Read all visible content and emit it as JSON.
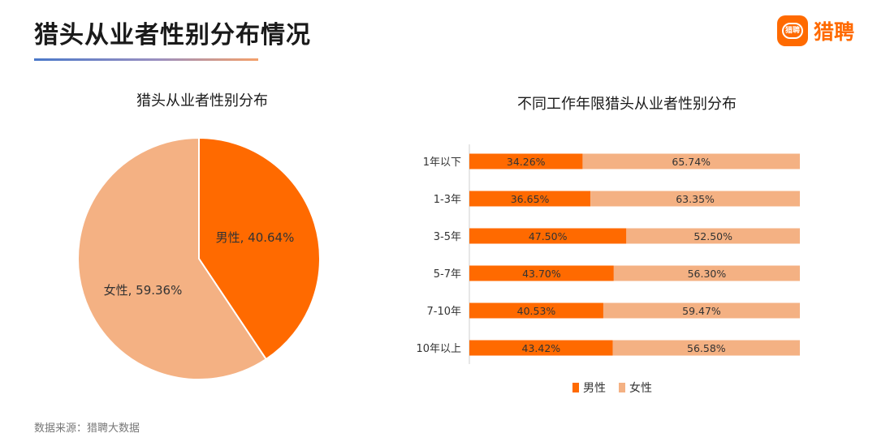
{
  "header": {
    "title": "猎头从业者性别分布情况"
  },
  "logo": {
    "badge_text": "猎聘",
    "name": "猎聘",
    "accent": "#ff6a00"
  },
  "colors": {
    "male": "#ff6a00",
    "female": "#f4b183"
  },
  "chart_data": [
    {
      "type": "pie",
      "title": "猎头从业者性别分布",
      "slices": [
        {
          "name": "男性",
          "value": 40.64,
          "label": "男性, 40.64%"
        },
        {
          "name": "女性",
          "value": 59.36,
          "label": "女性, 59.36%"
        }
      ]
    },
    {
      "type": "bar",
      "orientation": "horizontal",
      "stacked": true,
      "title": "不同工作年限猎头从业者性别分布",
      "categories": [
        "1年以下",
        "1-3年",
        "3-5年",
        "5-7年",
        "7-10年",
        "10年以上"
      ],
      "series": [
        {
          "name": "男性",
          "values": [
            34.26,
            36.65,
            47.5,
            43.7,
            40.53,
            43.42
          ],
          "labels": [
            "34.26%",
            "36.65%",
            "47.50%",
            "43.70%",
            "40.53%",
            "43.42%"
          ]
        },
        {
          "name": "女性",
          "values": [
            65.74,
            63.35,
            52.5,
            56.3,
            59.47,
            56.58
          ],
          "labels": [
            "65.74%",
            "63.35%",
            "52.50%",
            "56.30%",
            "59.47%",
            "56.58%"
          ]
        }
      ],
      "legend": [
        "男性",
        "女性"
      ],
      "legend_position": "bottom",
      "xlim": [
        0,
        100
      ],
      "grid": false
    }
  ],
  "footer": {
    "source": "数据来源：猎聘大数据"
  }
}
